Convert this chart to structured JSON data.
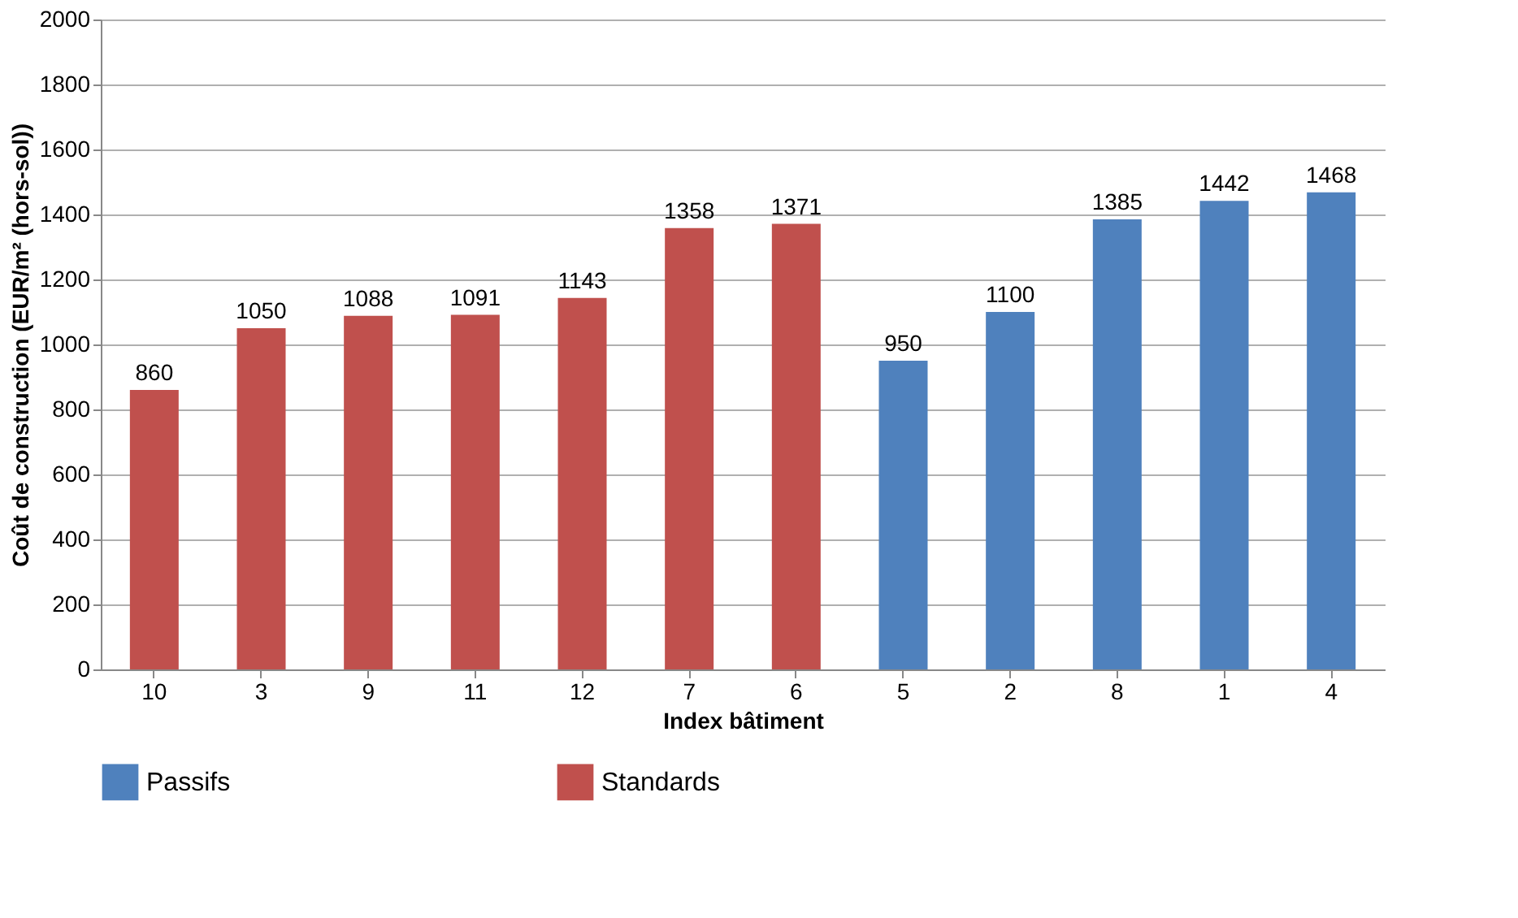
{
  "chart_data": {
    "type": "bar",
    "categories": [
      "10",
      "3",
      "9",
      "11",
      "12",
      "7",
      "6",
      "5",
      "2",
      "8",
      "1",
      "4"
    ],
    "series": [
      {
        "name": "Passifs",
        "color": "#4f81bd",
        "values": [
          null,
          null,
          null,
          null,
          null,
          null,
          null,
          950,
          1100,
          1385,
          1442,
          1468
        ]
      },
      {
        "name": "Standards",
        "color": "#c0504d",
        "values": [
          860,
          1050,
          1088,
          1091,
          1143,
          1358,
          1371,
          null,
          null,
          null,
          null,
          null
        ]
      }
    ],
    "xlabel": "Index bâtiment",
    "ylabel": "Coût de construction (EUR/m² (hors-sol))",
    "ylim": [
      0,
      2000
    ],
    "yticks": [
      0,
      200,
      400,
      600,
      800,
      1000,
      1200,
      1400,
      1600,
      1800,
      2000
    ],
    "grid": "y",
    "legend": "bottom",
    "data_labels": true
  }
}
